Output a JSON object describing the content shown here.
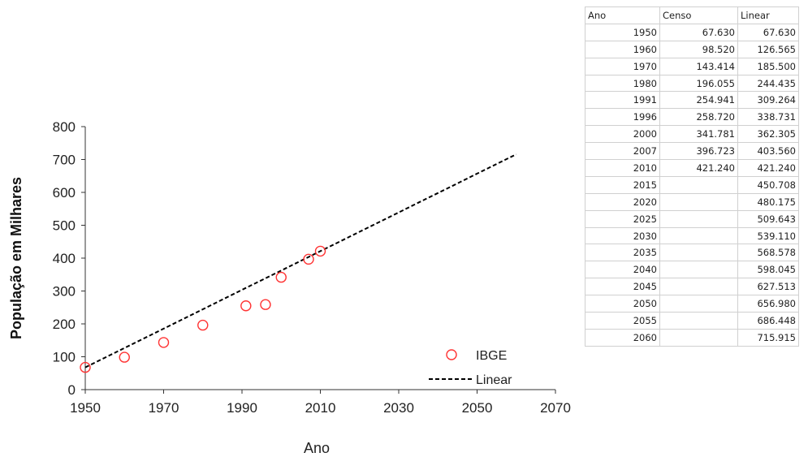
{
  "chart_data": {
    "type": "scatter",
    "xlabel": "Ano",
    "ylabel": "População  em Milhares",
    "xlim": [
      1950,
      2070
    ],
    "ylim": [
      0,
      800
    ],
    "xticks": [
      "1950",
      "1970",
      "1990",
      "2010",
      "2030",
      "2050",
      "2070"
    ],
    "yticks": [
      "0",
      "100",
      "200",
      "300",
      "400",
      "500",
      "600",
      "700",
      "800"
    ],
    "legend_position": "lower-right",
    "series": [
      {
        "name": "IBGE",
        "kind": "scatter",
        "marker": "open-circle",
        "color": "#ff3333",
        "points": [
          [
            1950,
            67.63
          ],
          [
            1960,
            98.52
          ],
          [
            1970,
            143.414
          ],
          [
            1980,
            196.055
          ],
          [
            1991,
            254.941
          ],
          [
            1996,
            258.72
          ],
          [
            2000,
            341.781
          ],
          [
            2007,
            396.723
          ],
          [
            2010,
            421.24
          ]
        ]
      },
      {
        "name": "Linear",
        "kind": "line",
        "style": "dashed",
        "color": "#000000",
        "points": [
          [
            1950,
            67.63
          ],
          [
            1960,
            126.565
          ],
          [
            1970,
            185.5
          ],
          [
            1980,
            244.435
          ],
          [
            1991,
            309.264
          ],
          [
            1996,
            338.731
          ],
          [
            2000,
            362.305
          ],
          [
            2007,
            403.56
          ],
          [
            2010,
            421.24
          ],
          [
            2015,
            450.708
          ],
          [
            2020,
            480.175
          ],
          [
            2025,
            509.643
          ],
          [
            2030,
            539.11
          ],
          [
            2035,
            568.578
          ],
          [
            2040,
            598.045
          ],
          [
            2045,
            627.513
          ],
          [
            2050,
            656.98
          ],
          [
            2055,
            686.448
          ],
          [
            2060,
            715.915
          ]
        ]
      }
    ]
  },
  "table": {
    "headers": [
      "Ano",
      "Censo",
      "Linear"
    ],
    "rows": [
      [
        "1950",
        "67.630",
        "67.630"
      ],
      [
        "1960",
        "98.520",
        "126.565"
      ],
      [
        "1970",
        "143.414",
        "185.500"
      ],
      [
        "1980",
        "196.055",
        "244.435"
      ],
      [
        "1991",
        "254.941",
        "309.264"
      ],
      [
        "1996",
        "258.720",
        "338.731"
      ],
      [
        "2000",
        "341.781",
        "362.305"
      ],
      [
        "2007",
        "396.723",
        "403.560"
      ],
      [
        "2010",
        "421.240",
        "421.240"
      ],
      [
        "2015",
        "",
        "450.708"
      ],
      [
        "2020",
        "",
        "480.175"
      ],
      [
        "2025",
        "",
        "509.643"
      ],
      [
        "2030",
        "",
        "539.110"
      ],
      [
        "2035",
        "",
        "568.578"
      ],
      [
        "2040",
        "",
        "598.045"
      ],
      [
        "2045",
        "",
        "627.513"
      ],
      [
        "2050",
        "",
        "656.980"
      ],
      [
        "2055",
        "",
        "686.448"
      ],
      [
        "2060",
        "",
        "715.915"
      ]
    ]
  }
}
